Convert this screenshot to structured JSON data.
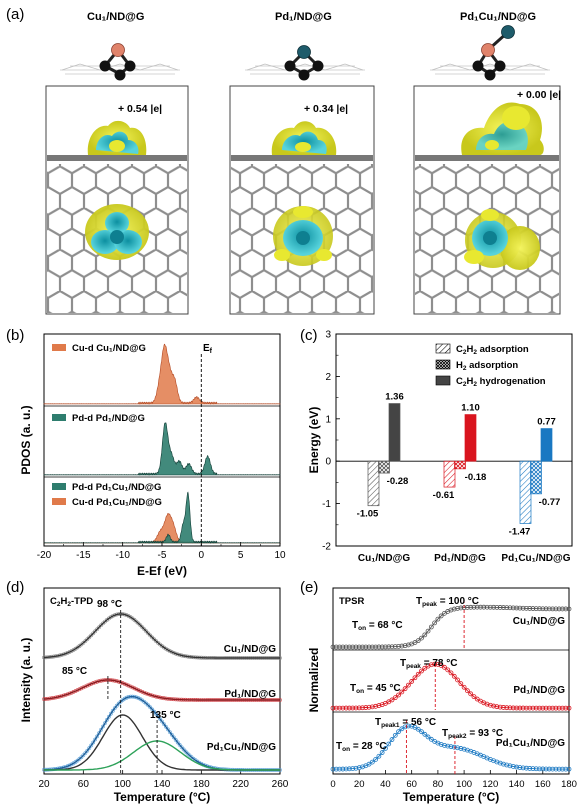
{
  "panel_letters": [
    "(a)",
    "(b)",
    "(c)",
    "(d)",
    "(e)"
  ],
  "panel_a": {
    "structures": [
      {
        "name": "Cu₁/ND@G",
        "charge": "+ 0.54 |e|"
      },
      {
        "name": "Pd₁/ND@G",
        "charge": "+ 0.34 |e|"
      },
      {
        "name": "Pd₁Cu₁/ND@G",
        "charge": "+ 0.00 |e|"
      }
    ],
    "colors": {
      "Cu": "#e0836b",
      "Pd": "#1e5c6b",
      "C": "#111111",
      "lattice": "#9a9a9a",
      "iso_yellow": "#e8e830",
      "iso_cyan": "#3cc0c8"
    }
  },
  "panel_b": {
    "ylabel": "PDOS (a. u.)",
    "xlabel": "E-Ef (eV)",
    "fermi_label": "E",
    "fermi_sub": "f",
    "xticks": [
      "-20",
      "-15",
      "-10",
      "-5",
      "0",
      "5",
      "10"
    ],
    "sub1": {
      "legend": [
        "Cu-d Cu₁/ND@G"
      ]
    },
    "sub2": {
      "legend": [
        "Pd-d Pd₁/ND@G"
      ]
    },
    "sub3": {
      "legend": [
        "Pd-d Pd₁Cu₁/ND@G",
        "Cu-d Pd₁Cu₁/ND@G"
      ]
    },
    "colors": {
      "cu": "#e07a4a",
      "pd": "#2e7d6e"
    }
  },
  "chart_data": [
    {
      "type": "area",
      "panel": "(b)",
      "xlabel": "E-Ef (eV)",
      "ylabel": "PDOS (a. u.)",
      "xlim": [
        -20,
        10
      ],
      "series": [
        {
          "name": "Cu-d Cu₁/ND@G",
          "peaks": [
            {
              "x": -4.7,
              "h": 1.0
            },
            {
              "x": -4.1,
              "h": 0.55
            },
            {
              "x": -3.4,
              "h": 0.45
            },
            {
              "x": -5.3,
              "h": 0.35
            },
            {
              "x": -0.6,
              "h": 0.12
            }
          ]
        },
        {
          "name": "Pd-d Pd₁/ND@G",
          "peaks": [
            {
              "x": -4.6,
              "h": 1.0
            },
            {
              "x": -3.8,
              "h": 0.35
            },
            {
              "x": -2.8,
              "h": 0.25
            },
            {
              "x": -1.6,
              "h": 0.2
            },
            {
              "x": 0.8,
              "h": 0.35
            }
          ]
        },
        {
          "name": "Pd-d Pd₁Cu₁/ND@G",
          "peaks": [
            {
              "x": -1.7,
              "h": 1.0
            },
            {
              "x": -2.3,
              "h": 0.35
            },
            {
              "x": -4.2,
              "h": 0.15
            }
          ]
        },
        {
          "name": "Cu-d Pd₁Cu₁/ND@G",
          "peaks": [
            {
              "x": -4.3,
              "h": 0.7
            },
            {
              "x": -3.6,
              "h": 0.45
            },
            {
              "x": -5.2,
              "h": 0.3
            }
          ]
        }
      ]
    },
    {
      "type": "bar",
      "panel": "(c)",
      "categories": [
        "Cu₁/ND@G",
        "Pd₁/ND@G",
        "Pd₁Cu₁/ND@G"
      ],
      "series": [
        {
          "name": "C₂H₂ adsorption",
          "values": [
            -1.05,
            -0.61,
            -1.47
          ]
        },
        {
          "name": "H₂ adsorption",
          "values": [
            -0.28,
            -0.18,
            -0.77
          ]
        },
        {
          "name": "C₂H₂ hydrogenation",
          "values": [
            1.36,
            1.1,
            0.77
          ]
        }
      ],
      "value_labels": [
        [
          "-1.05",
          "-0.28",
          "1.36"
        ],
        [
          "-0.61",
          "-0.18",
          "1.10"
        ],
        [
          "-1.47",
          "-0.77",
          "0.77"
        ]
      ],
      "ylabel": "Energy (eV)",
      "ylim": [
        -2,
        3
      ],
      "yticks": [
        "-2",
        "-1",
        "0",
        "1",
        "2",
        "3"
      ],
      "legend": [
        "C₂H₂ adsorption",
        "H₂ adsorption",
        "C₂H₂ hydrogenation"
      ],
      "colors": {
        "Cu": "#444444",
        "Pd": "#d9141e",
        "PdCu": "#1a78c2"
      }
    },
    {
      "type": "line",
      "panel": "(d)",
      "title": "C₂H₂-TPD",
      "xlabel": "Temperature (°C)",
      "ylabel": "Intensity (a. u.)",
      "xlim": [
        20,
        260
      ],
      "xticks": [
        "20",
        "60",
        "100",
        "140",
        "180",
        "220",
        "260"
      ],
      "series": [
        {
          "name": "Cu₁/ND@G",
          "peak_temp": 98,
          "peak_label": "98 °C",
          "color": "#555555"
        },
        {
          "name": "Pd₁/ND@G",
          "peak_temp": 85,
          "peak_label": "85 °C",
          "color": "#c0353a"
        },
        {
          "name": "Pd₁Cu₁/ND@G",
          "peak_temps": [
            100,
            135
          ],
          "peak_label": "135 °C",
          "color": "#2a6fb0"
        }
      ]
    },
    {
      "type": "line",
      "panel": "(e)",
      "title": "TPSR",
      "xlabel": "Temperature (°C)",
      "ylabel": "Normalized",
      "xlim": [
        0,
        180
      ],
      "xticks": [
        "0",
        "20",
        "40",
        "60",
        "80",
        "100",
        "120",
        "140",
        "160",
        "180"
      ],
      "series": [
        {
          "name": "Cu₁/ND@G",
          "t_on": 68,
          "t_peak": 100,
          "color": "#555555"
        },
        {
          "name": "Pd₁/ND@G",
          "t_on": 45,
          "t_peak": 78,
          "color": "#d9141e"
        },
        {
          "name": "Pd₁Cu₁/ND@G",
          "t_on": 28,
          "t_peak1": 56,
          "t_peak2": 93,
          "color": "#2a6fb0"
        }
      ],
      "annotations": {
        "cu_on": "= 68 °C",
        "cu_peak": "= 100 °C",
        "pd_on": "= 45 °C",
        "pd_peak": "= 78 °C",
        "pdcu_on": "= 28 °C",
        "pdcu_peak1": "= 56 °C",
        "pdcu_peak2": "= 93 °C"
      }
    }
  ],
  "panel_d_labels": {
    "cu": "Cu₁/ND@G",
    "pd": "Pd₁/ND@G",
    "pdcu": "Pd₁Cu₁/ND@G",
    "cu_peak": "98 °C",
    "pd_peak": "85 °C",
    "pdcu_peak": "135 °C"
  },
  "panel_e_labels": {
    "cu": "Cu₁/ND@G",
    "pd": "Pd₁/ND@G",
    "pdcu": "Pd₁Cu₁/ND@G"
  }
}
